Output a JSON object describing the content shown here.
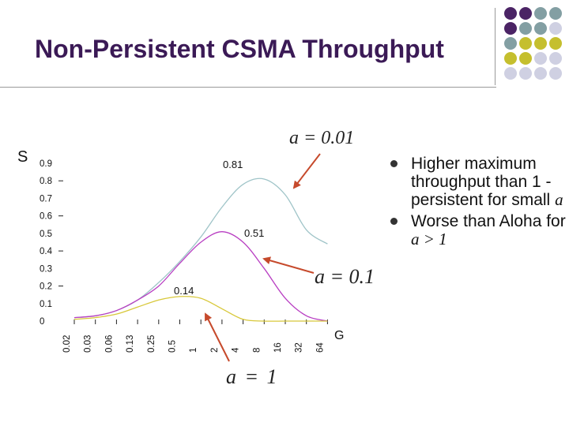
{
  "slide": {
    "title": "Non-Persistent CSMA Throughput",
    "annotation_a001": "a = 0.01",
    "annotation_a01": "a = 0.1",
    "annotation_a1": "a = 1",
    "bullets": [
      {
        "pre": "Higher maximum throughput than 1 -persistent for small ",
        "var": "a"
      },
      {
        "pre": "Worse than Aloha for ",
        "var": "a > 1"
      }
    ],
    "dot_colors": [
      "#4b2465",
      "#839fa3",
      "#c5bf2e",
      "#cfd0e2"
    ]
  },
  "chart_data": {
    "type": "line",
    "ylabel": "S",
    "xlabel": "G",
    "x_ticks": [
      "0.02",
      "0.03",
      "0.06",
      "0.13",
      "0.25",
      "0.5",
      "1",
      "2",
      "4",
      "8",
      "16",
      "32",
      "64"
    ],
    "y_ticks": [
      "0",
      "0.1",
      "0.2",
      "0.3",
      "0.4",
      "0.5",
      "0.6",
      "0.7",
      "0.8",
      "0.9"
    ],
    "ylim": [
      0,
      0.9
    ],
    "x_scale": "log",
    "series": [
      {
        "name": "a = 0.01",
        "color": "#9fc4c8",
        "x": [
          0.02,
          0.03,
          0.06,
          0.13,
          0.25,
          0.5,
          1,
          2,
          4,
          8,
          16,
          32,
          64
        ],
        "values": [
          0.02,
          0.03,
          0.06,
          0.12,
          0.22,
          0.34,
          0.48,
          0.65,
          0.78,
          0.81,
          0.72,
          0.52,
          0.44
        ]
      },
      {
        "name": "a = 0.1",
        "color": "#b83ec2",
        "x": [
          0.02,
          0.03,
          0.06,
          0.13,
          0.25,
          0.5,
          1,
          2,
          4,
          8,
          16,
          32,
          64
        ],
        "values": [
          0.02,
          0.03,
          0.06,
          0.12,
          0.2,
          0.33,
          0.45,
          0.51,
          0.45,
          0.3,
          0.13,
          0.03,
          0.0
        ]
      },
      {
        "name": "a = 1",
        "color": "#d8c83a",
        "x": [
          0.02,
          0.03,
          0.06,
          0.13,
          0.25,
          0.5,
          1,
          2,
          4,
          8,
          16,
          32,
          64
        ],
        "values": [
          0.01,
          0.02,
          0.04,
          0.08,
          0.12,
          0.14,
          0.13,
          0.07,
          0.01,
          0.0,
          0.0,
          0.0,
          0.0
        ]
      }
    ],
    "peak_labels": [
      "0.81",
      "0.51",
      "0.14"
    ],
    "grid": false,
    "legend": "none"
  }
}
